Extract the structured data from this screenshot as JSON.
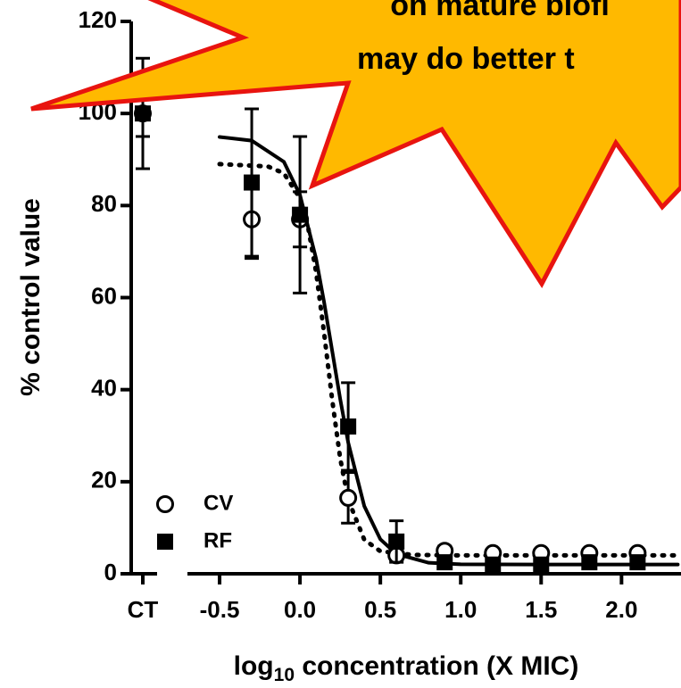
{
  "chart_data": {
    "type": "scatter",
    "x_label_parts": [
      "log",
      "10",
      " concentration (X MIC)"
    ],
    "y_label": "% control value",
    "ct_label": "CT",
    "x": [
      -0.3,
      0,
      0.3,
      0.6,
      0.9,
      1.2,
      1.5,
      1.8,
      2.1
    ],
    "series": [
      {
        "name": "CV",
        "marker": "open-circle",
        "color": "#000000",
        "values": [
          77,
          77,
          16.5,
          4,
          5,
          4.5,
          4.5,
          4.5,
          4.5
        ],
        "errors": [
          8.5,
          6,
          5.5,
          1,
          1,
          0.5,
          0.5,
          0.5,
          0.5
        ],
        "ct_value": 100,
        "ct_error": 12
      },
      {
        "name": "RF",
        "marker": "filled-square",
        "color": "#000000",
        "values": [
          85,
          78,
          32,
          7,
          2.5,
          2,
          2,
          2.5,
          2.5
        ],
        "errors": [
          16,
          17,
          9.5,
          4.5,
          0.5,
          0.5,
          0.5,
          0.5,
          0.5
        ],
        "ct_value": 100,
        "ct_error": 5
      }
    ],
    "fits": [
      {
        "dashed": false,
        "x": [
          -0.5,
          -0.3,
          -0.1,
          0,
          0.1,
          0.15,
          0.2,
          0.25,
          0.3,
          0.4,
          0.5,
          0.6,
          0.8,
          1.0,
          1.5,
          2.35
        ],
        "values": [
          94.9,
          94.1,
          89.5,
          82.3,
          68.5,
          59,
          48.5,
          38,
          28.5,
          14.7,
          7.5,
          4.3,
          2.4,
          2.06,
          2,
          2
        ]
      },
      {
        "dashed": true,
        "x": [
          -0.5,
          -0.2,
          -0.1,
          0,
          0.05,
          0.1,
          0.15,
          0.2,
          0.25,
          0.3,
          0.4,
          0.5,
          0.7,
          1.0,
          2.35
        ],
        "values": [
          89,
          88.5,
          87,
          81.6,
          75.4,
          65.6,
          52.3,
          37.9,
          25.1,
          16.1,
          7.4,
          4.9,
          4.1,
          4,
          4
        ]
      }
    ],
    "xlim": [
      -0.7,
      2.37
    ],
    "xticks": [
      {
        "value": -0.5,
        "label": "-0.5"
      },
      {
        "value": 0,
        "label": "0.0"
      },
      {
        "value": 0.5,
        "label": "0.5"
      },
      {
        "value": 1,
        "label": "1.0"
      },
      {
        "value": 1.5,
        "label": "1.5"
      },
      {
        "value": 2,
        "label": "2.0"
      }
    ],
    "ylim": [
      0,
      120
    ],
    "yticks": [
      0,
      20,
      40,
      60,
      80,
      100,
      120
    ],
    "legend": "lower left",
    "callout": {
      "lines": [
        "on mature biofi",
        "may do better t"
      ],
      "color": "#FFB900",
      "border": "#E8140F"
    }
  }
}
